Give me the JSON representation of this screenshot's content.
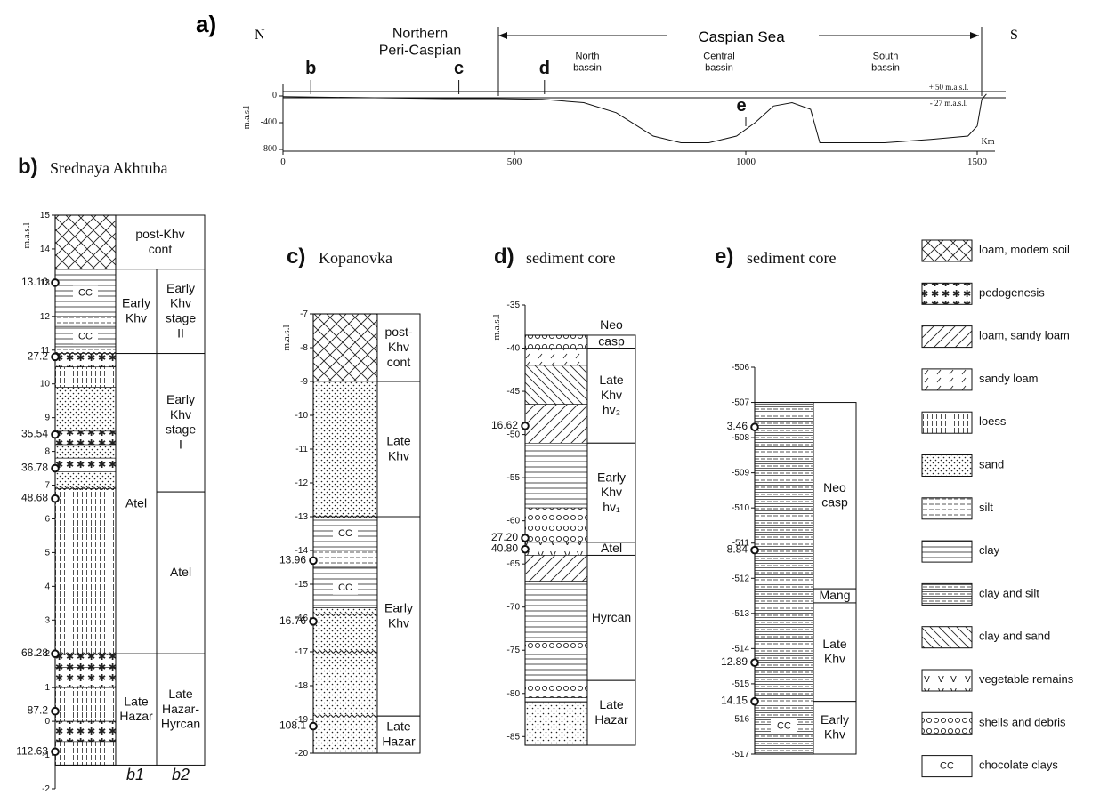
{
  "panel_a": {
    "letter": "a)",
    "north": "N",
    "south": "S",
    "region": "Northern\nPeri-Caspian",
    "sea": "Caspian Sea",
    "basins": [
      "North\nbassin",
      "Central\nbassin",
      "South\nbassin"
    ],
    "site_labels": [
      {
        "id": "b",
        "km": 60
      },
      {
        "id": "c",
        "km": 380
      },
      {
        "id": "d",
        "km": 565
      },
      {
        "id": "e",
        "km": 1000
      }
    ],
    "levels": [
      "+ 50 m.a.s.l.",
      "- 27 m.a.s.l."
    ],
    "ylabel": "m.a.s.l",
    "yticks": [
      "0",
      "-400",
      "-800"
    ],
    "xlabel": "Km",
    "xticks": [
      "0",
      "500",
      "1000",
      "1500"
    ],
    "profile": [
      [
        0,
        -10
      ],
      [
        350,
        -40
      ],
      [
        460,
        -40
      ],
      [
        560,
        -50
      ],
      [
        650,
        -100
      ],
      [
        720,
        -250
      ],
      [
        800,
        -600
      ],
      [
        860,
        -700
      ],
      [
        920,
        -700
      ],
      [
        980,
        -600
      ],
      [
        1020,
        -400
      ],
      [
        1060,
        -150
      ],
      [
        1100,
        -100
      ],
      [
        1140,
        -200
      ],
      [
        1160,
        -700
      ],
      [
        1300,
        -700
      ],
      [
        1400,
        -650
      ],
      [
        1480,
        -600
      ],
      [
        1500,
        -450
      ],
      [
        1510,
        -50
      ],
      [
        1520,
        30
      ]
    ]
  },
  "panel_b": {
    "letter": "b)",
    "title": "Srednaya Akhtuba",
    "ylabel": "m.a.s.l",
    "ymin": -2,
    "ymax": 15,
    "yticks": [
      "-2",
      "-1",
      "0",
      "1",
      "2",
      "3",
      "4",
      "5",
      "6",
      "7",
      "8",
      "9",
      "10",
      "11",
      "12",
      "13",
      "14",
      "15"
    ],
    "col1_label": "b1",
    "col2_label": "b2",
    "layers": [
      {
        "top": 15.0,
        "bot": 13.4,
        "pattern": "loam"
      },
      {
        "top": 13.4,
        "bot": 12.0,
        "pattern": "clay",
        "cc": "CC"
      },
      {
        "top": 12.0,
        "bot": 11.7,
        "pattern": "silt"
      },
      {
        "top": 11.7,
        "bot": 11.1,
        "pattern": "clay",
        "cc": "CC"
      },
      {
        "top": 11.1,
        "bot": 10.9,
        "pattern": "silt"
      },
      {
        "top": 10.9,
        "bot": 10.5,
        "pattern": "pedo"
      },
      {
        "top": 10.5,
        "bot": 9.9,
        "pattern": "loess"
      },
      {
        "top": 9.9,
        "bot": 8.6,
        "pattern": "sand"
      },
      {
        "top": 8.6,
        "bot": 8.2,
        "pattern": "pedo"
      },
      {
        "top": 8.2,
        "bot": 7.8,
        "pattern": "sand"
      },
      {
        "top": 7.8,
        "bot": 7.4,
        "pattern": "pedo"
      },
      {
        "top": 7.4,
        "bot": 6.9,
        "pattern": "sand"
      },
      {
        "top": 6.9,
        "bot": 2.0,
        "pattern": "loess"
      },
      {
        "top": 2.0,
        "bot": 1.6,
        "pattern": "pedo"
      },
      {
        "top": 1.6,
        "bot": 1.0,
        "pattern": "pedo"
      },
      {
        "top": 1.0,
        "bot": 0.0,
        "pattern": "loess"
      },
      {
        "top": 0.0,
        "bot": -0.6,
        "pattern": "pedo"
      },
      {
        "top": -0.6,
        "bot": -1.3,
        "pattern": "loess"
      }
    ],
    "units1": [
      {
        "top": 15.0,
        "bot": 13.4,
        "label": "post-Khv\ncont",
        "span": true
      },
      {
        "top": 13.4,
        "bot": 10.9,
        "label": "Early\nKhv"
      },
      {
        "top": 10.9,
        "bot": 2.0,
        "label": "Atel"
      },
      {
        "top": 2.0,
        "bot": -1.3,
        "label": "Late\nHazar"
      }
    ],
    "units2": [
      {
        "top": 13.4,
        "bot": 10.9,
        "label": "Early\nKhv\nstage\nII"
      },
      {
        "top": 10.9,
        "bot": 6.8,
        "label": "Early\nKhv\nstage\nI"
      },
      {
        "top": 6.8,
        "bot": 2.0,
        "label": "Atel"
      },
      {
        "top": 2.0,
        "bot": -1.3,
        "label": "Late\nHazar-\nHyrcan"
      }
    ],
    "dates": [
      {
        "y": 13.0,
        "label": "13.10"
      },
      {
        "y": 10.8,
        "label": "27.2"
      },
      {
        "y": 8.5,
        "label": "35.54"
      },
      {
        "y": 7.5,
        "label": "36.78"
      },
      {
        "y": 6.6,
        "label": "48.68"
      },
      {
        "y": 2.0,
        "label": "68.28"
      },
      {
        "y": 0.3,
        "label": "87.2"
      },
      {
        "y": -0.9,
        "label": "112.63"
      }
    ]
  },
  "panel_c": {
    "letter": "c)",
    "title": "Kopanovka",
    "ylabel": "m.a.s.l",
    "ymin": -20,
    "ymax": -7,
    "yticks": [
      "-7",
      "-8",
      "-9",
      "-10",
      "-11",
      "-12",
      "-13",
      "-14",
      "-15",
      "-16",
      "-17",
      "-18",
      "-19",
      "-20"
    ],
    "layers": [
      {
        "top": -7.0,
        "bot": -9.0,
        "pattern": "loam"
      },
      {
        "top": -9.0,
        "bot": -13.0,
        "pattern": "sand"
      },
      {
        "top": -13.0,
        "bot": -14.0,
        "pattern": "clay",
        "cc": "CC"
      },
      {
        "top": -14.0,
        "bot": -14.5,
        "pattern": "silt"
      },
      {
        "top": -14.5,
        "bot": -15.7,
        "pattern": "clay",
        "cc": "CC"
      },
      {
        "top": -15.7,
        "bot": -20.0,
        "pattern": "sand"
      }
    ],
    "units": [
      {
        "top": -7.0,
        "bot": -9.0,
        "label": "post-\nKhv\ncont"
      },
      {
        "top": -9.0,
        "bot": -13.0,
        "label": "Late\nKhv"
      },
      {
        "top": -13.0,
        "bot": -18.9,
        "label": "Early\nKhv"
      },
      {
        "top": -18.9,
        "bot": -20.0,
        "label": "Late\nHazar"
      }
    ],
    "dates": [
      {
        "y": -14.3,
        "label": "13.96"
      },
      {
        "y": -16.1,
        "label": "16.76"
      },
      {
        "y": -19.2,
        "label": "108.1"
      }
    ]
  },
  "panel_d": {
    "letter": "d)",
    "title": "sediment core",
    "ylabel": "m.a.s.l",
    "ymin": -86,
    "ymax": -35,
    "yticks": [
      "-35",
      "-40",
      "-45",
      "-50",
      "-55",
      "-60",
      "-65",
      "-70",
      "-75",
      "-80",
      "-85"
    ],
    "layers": [
      {
        "top": -38.5,
        "bot": -40.0,
        "pattern": "shells"
      },
      {
        "top": -40.0,
        "bot": -42.0,
        "pattern": "sandyloam"
      },
      {
        "top": -42.0,
        "bot": -46.5,
        "pattern": "claysand"
      },
      {
        "top": -46.5,
        "bot": -51.0,
        "pattern": "loam_sandy"
      },
      {
        "top": -51.0,
        "bot": -58.5,
        "pattern": "clay"
      },
      {
        "top": -58.5,
        "bot": -62.5,
        "pattern": "shells"
      },
      {
        "top": -62.5,
        "bot": -64.0,
        "pattern": "veg"
      },
      {
        "top": -64.0,
        "bot": -67.0,
        "pattern": "loam_sandy"
      },
      {
        "top": -67.0,
        "bot": -74.0,
        "pattern": "clay"
      },
      {
        "top": -74.0,
        "bot": -75.5,
        "pattern": "shells"
      },
      {
        "top": -75.5,
        "bot": -78.5,
        "pattern": "clay"
      },
      {
        "top": -78.5,
        "bot": -80.5,
        "pattern": "shells"
      },
      {
        "top": -80.5,
        "bot": -81.0,
        "pattern": "clay"
      },
      {
        "top": -81.0,
        "bot": -86.0,
        "pattern": "sand"
      }
    ],
    "units": [
      {
        "top": -35.0,
        "bot": -38.5,
        "label": "Neo",
        "noborder": true
      },
      {
        "top": -38.5,
        "bot": -40.0,
        "label": "casp"
      },
      {
        "top": -40.0,
        "bot": -51.0,
        "label": "Late\nKhv\nhv₂"
      },
      {
        "top": -51.0,
        "bot": -62.5,
        "label": "Early\nKhv\nhv₁"
      },
      {
        "top": -62.5,
        "bot": -64.0,
        "label": "Atel"
      },
      {
        "top": -64.0,
        "bot": -78.5,
        "label": "Hyrcan"
      },
      {
        "top": -78.5,
        "bot": -86.0,
        "label": "Late\nHazar"
      }
    ],
    "dates": [
      {
        "y": -49.0,
        "label": "16.62"
      },
      {
        "y": -62.0,
        "label": "27.20"
      },
      {
        "y": -63.3,
        "label": "40.80"
      }
    ]
  },
  "panel_e": {
    "letter": "e)",
    "title": "sediment core",
    "ylabel": "m.a.s.l",
    "ymin": -517,
    "ymax": -506,
    "yticks": [
      "-506",
      "-507",
      "-508",
      "-509",
      "-510",
      "-511",
      "-512",
      "-513",
      "-514",
      "-515",
      "-516",
      "-517"
    ],
    "layers": [
      {
        "top": -507.0,
        "bot": -517.0,
        "pattern": "claysilt"
      }
    ],
    "cc": {
      "y": -516.2,
      "label": "CC"
    },
    "units": [
      {
        "top": -507.0,
        "bot": -512.3,
        "label": "Neo\ncasp"
      },
      {
        "top": -512.3,
        "bot": -512.7,
        "label": "Mang"
      },
      {
        "top": -512.7,
        "bot": -515.5,
        "label": "Late\nKhv"
      },
      {
        "top": -515.5,
        "bot": -517.0,
        "label": "Early\nKhv"
      }
    ],
    "dates": [
      {
        "y": -507.7,
        "label": "3.46"
      },
      {
        "y": -511.2,
        "label": "8.84"
      },
      {
        "y": -514.4,
        "label": "12.89"
      },
      {
        "y": -515.5,
        "label": "14.15"
      }
    ]
  },
  "legend": [
    {
      "pattern": "loam",
      "label": "loam, modem soil"
    },
    {
      "pattern": "pedo",
      "label": "pedogenesis"
    },
    {
      "pattern": "loam_sandy",
      "label": "loam, sandy loam"
    },
    {
      "pattern": "sandyloam",
      "label": "sandy loam"
    },
    {
      "pattern": "loess",
      "label": "loess"
    },
    {
      "pattern": "sand",
      "label": "sand"
    },
    {
      "pattern": "silt",
      "label": "silt"
    },
    {
      "pattern": "clay",
      "label": "clay"
    },
    {
      "pattern": "claysilt",
      "label": "clay and silt"
    },
    {
      "pattern": "claysand",
      "label": "clay and sand"
    },
    {
      "pattern": "veg",
      "label": "vegetable remains"
    },
    {
      "pattern": "shells",
      "label": "shells and debris"
    },
    {
      "pattern": "cc",
      "label": "chocolate clays"
    }
  ]
}
